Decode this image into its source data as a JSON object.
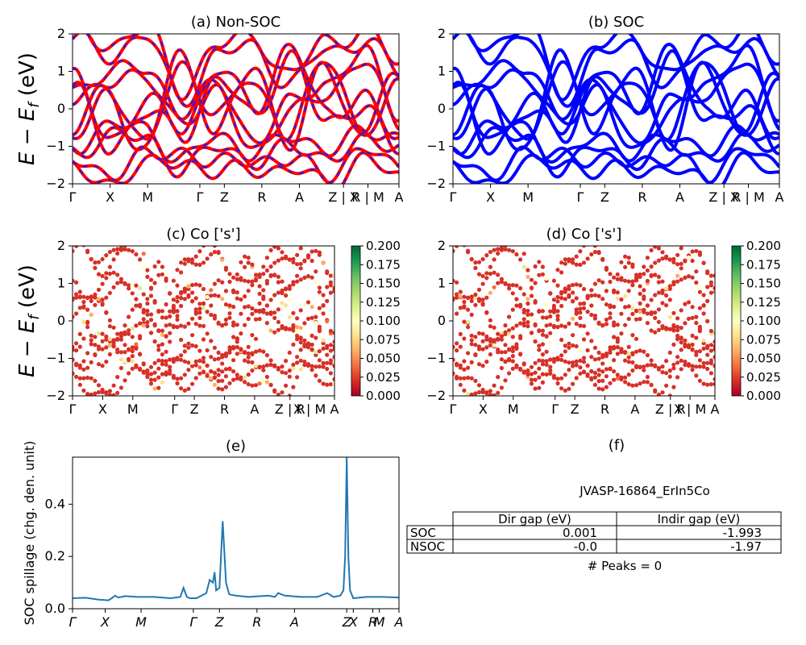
{
  "figure": {
    "id_label": "JVASP-16864_ErIn5Co",
    "peaks_text": "# Peaks = 0"
  },
  "ylabel_energy": "E − E_f (eV)",
  "chart_data": [
    {
      "panel": "a",
      "type": "line",
      "title": "(a) Non-SOC",
      "ylim": [
        -2,
        2
      ],
      "yticks": [
        "2",
        "1",
        "0",
        "−1",
        "−2"
      ],
      "kpath": [
        "Γ",
        "X",
        "M",
        "Γ",
        "Z",
        "R",
        "A",
        "Z | X",
        "R | M",
        "A"
      ],
      "series": [
        {
          "values_at_ticks": [
            0.6,
            -1.1,
            0.0,
            -0.8,
            0.9,
            -0.3,
            1.5,
            -0.5,
            0.2,
            -1.2
          ]
        },
        {
          "values_at_ticks": [
            -0.9,
            0.4,
            -1.2,
            1.2,
            -0.5,
            0.8,
            -0.9,
            1.1,
            -0.7,
            0.5
          ]
        },
        {
          "values_at_ticks": [
            1.8,
            1.5,
            1.9,
            0.3,
            1.4,
            1.7,
            0.6,
            1.6,
            1.8,
            1.0
          ]
        },
        {
          "values_at_ticks": [
            -1.7,
            -1.9,
            -1.6,
            -1.3,
            -1.8,
            -1.5,
            -1.7,
            -1.9,
            -1.4,
            -1.8
          ]
        },
        {
          "values_at_ticks": [
            0.1,
            0.9,
            0.7,
            -0.2,
            0.3,
            -1.0,
            -0.2,
            0.5,
            1.2,
            -0.3
          ]
        },
        {
          "values_at_ticks": [
            -1.3,
            -0.6,
            -0.9,
            -1.5,
            -1.1,
            -1.3,
            -1.1,
            -1.2,
            -1.0,
            -0.9
          ]
        }
      ],
      "colors": [
        "#ff0000",
        "#1a1aff"
      ]
    },
    {
      "panel": "b",
      "type": "line",
      "title": "(b) SOC",
      "ylim": [
        -2,
        2
      ],
      "yticks": [
        "2",
        "1",
        "0",
        "−1",
        "−2"
      ],
      "kpath": [
        "Γ",
        "X",
        "M",
        "Γ",
        "Z",
        "R",
        "A",
        "Z | X",
        "R | M",
        "A"
      ],
      "series": [
        {
          "values_at_ticks": [
            0.6,
            -1.1,
            0.0,
            -0.8,
            0.9,
            -0.3,
            1.5,
            -0.5,
            0.2,
            -1.2
          ]
        },
        {
          "values_at_ticks": [
            -0.9,
            0.4,
            -1.2,
            1.2,
            -0.5,
            0.8,
            -0.9,
            1.1,
            -0.7,
            0.5
          ]
        },
        {
          "values_at_ticks": [
            1.8,
            1.5,
            1.9,
            0.3,
            1.4,
            1.7,
            0.6,
            1.6,
            1.8,
            1.0
          ]
        },
        {
          "values_at_ticks": [
            -1.7,
            -1.9,
            -1.6,
            -1.3,
            -1.8,
            -1.5,
            -1.7,
            -1.9,
            -1.4,
            -1.8
          ]
        },
        {
          "values_at_ticks": [
            0.1,
            0.9,
            0.7,
            -0.2,
            0.3,
            -1.0,
            -0.2,
            0.5,
            1.2,
            -0.3
          ]
        },
        {
          "values_at_ticks": [
            -1.3,
            -0.6,
            -0.9,
            -1.5,
            -1.1,
            -1.3,
            -1.1,
            -1.2,
            -1.0,
            -0.9
          ]
        }
      ],
      "colors": [
        "#0000ff"
      ]
    },
    {
      "panel": "c",
      "type": "scatter",
      "title": "(c)  Co ['s']",
      "ylim": [
        -2,
        2
      ],
      "yticks": [
        "2",
        "1",
        "0",
        "−1",
        "−2"
      ],
      "kpath": [
        "Γ",
        "X",
        "M",
        "Γ",
        "Z",
        "R",
        "A",
        "Z | R",
        "X | M",
        "A"
      ],
      "colorbar": {
        "min": 0.0,
        "max": 0.2,
        "ticks": [
          "0.000",
          "0.025",
          "0.050",
          "0.075",
          "0.100",
          "0.125",
          "0.150",
          "0.175",
          "0.200"
        ]
      },
      "colormap": [
        "#a50026",
        "#d73027",
        "#f46d43",
        "#fdae61",
        "#fee08b",
        "#ffffbf",
        "#d9ef8b",
        "#a6d96a",
        "#66bd63",
        "#1a9850",
        "#006837"
      ]
    },
    {
      "panel": "d",
      "type": "scatter",
      "title": "(d) Co ['s']",
      "ylim": [
        -2,
        2
      ],
      "yticks": [
        "2",
        "1",
        "0",
        "−1",
        "−2"
      ],
      "kpath": [
        "Γ",
        "X",
        "M",
        "Γ",
        "Z",
        "R",
        "A",
        "Z | R",
        "X | M",
        "A"
      ],
      "colorbar": {
        "min": 0.0,
        "max": 0.2,
        "ticks": [
          "0.000",
          "0.025",
          "0.050",
          "0.075",
          "0.100",
          "0.125",
          "0.150",
          "0.175",
          "0.200"
        ]
      },
      "colormap": [
        "#a50026",
        "#d73027",
        "#f46d43",
        "#fdae61",
        "#fee08b",
        "#ffffbf",
        "#d9ef8b",
        "#a6d96a",
        "#66bd63",
        "#1a9850",
        "#006837"
      ]
    },
    {
      "panel": "e",
      "type": "line",
      "title": "(e)",
      "ylabel": "SOC spillage (chg. den. unit)",
      "ylim": [
        0,
        0.58
      ],
      "yticks": [
        "0.0",
        "0.2",
        "0.4"
      ],
      "kpath": [
        "Γ",
        "X",
        "M",
        "Γ",
        "Z",
        "R",
        "A",
        "Z",
        "X",
        "R",
        "M",
        "A"
      ],
      "series": [
        {
          "name": "",
          "color": "#1f77b4",
          "x": [
            0.0,
            0.04,
            0.08,
            0.11,
            0.12,
            0.13,
            0.14,
            0.15,
            0.16,
            0.2,
            0.25,
            0.3,
            0.33,
            0.34,
            0.35,
            0.36,
            0.37,
            0.38,
            0.41,
            0.42,
            0.43,
            0.435,
            0.44,
            0.45,
            0.46,
            0.47,
            0.48,
            0.5,
            0.54,
            0.6,
            0.62,
            0.63,
            0.65,
            0.7,
            0.75,
            0.78,
            0.8,
            0.82,
            0.83,
            0.835,
            0.84,
            0.845,
            0.85,
            0.86,
            0.9,
            0.95,
            1.0
          ],
          "values": [
            0.04,
            0.042,
            0.035,
            0.032,
            0.04,
            0.05,
            0.043,
            0.045,
            0.048,
            0.045,
            0.045,
            0.04,
            0.045,
            0.08,
            0.045,
            0.04,
            0.04,
            0.04,
            0.06,
            0.11,
            0.1,
            0.14,
            0.07,
            0.08,
            0.335,
            0.1,
            0.055,
            0.05,
            0.045,
            0.05,
            0.045,
            0.06,
            0.05,
            0.045,
            0.045,
            0.06,
            0.045,
            0.05,
            0.07,
            0.2,
            0.58,
            0.2,
            0.07,
            0.04,
            0.045,
            0.045,
            0.043
          ]
        }
      ]
    }
  ],
  "table": {
    "title": "(f)",
    "headers": [
      "",
      "Dir gap (eV)",
      "Indir gap (eV)"
    ],
    "rows": [
      [
        "SOC",
        "0.001",
        "-1.993"
      ],
      [
        "NSOC",
        "-0.0",
        "-1.97"
      ]
    ]
  }
}
